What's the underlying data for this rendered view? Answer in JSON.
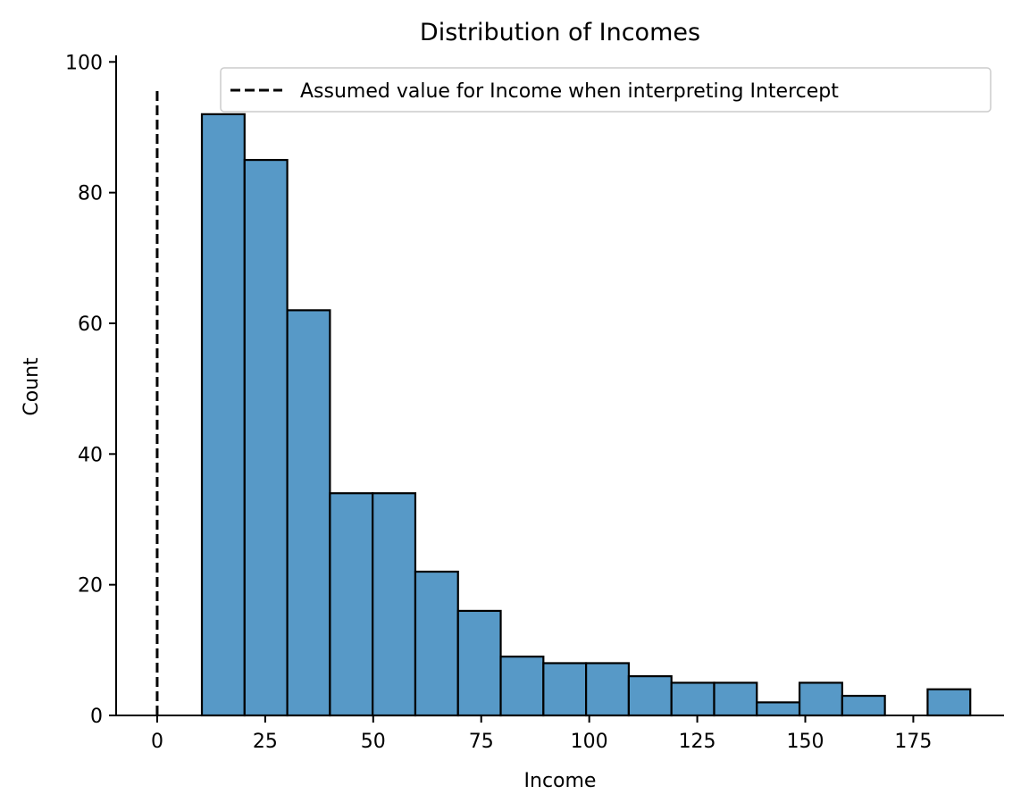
{
  "chart_data": {
    "type": "bar",
    "title": "Distribution of Incomes",
    "xlabel": "Income",
    "ylabel": "Count",
    "xlim": [
      -9.5,
      196
    ],
    "ylim": [
      0,
      101
    ],
    "xticks": [
      0,
      25,
      50,
      75,
      100,
      125,
      150,
      175
    ],
    "yticks": [
      0,
      20,
      40,
      60,
      80,
      100
    ],
    "grid": false,
    "bar_color": "#5799c7",
    "bar_edge_color": "#000000",
    "bins": [
      {
        "x0": 10.35,
        "x1": 20.23,
        "count": 92
      },
      {
        "x0": 20.23,
        "x1": 30.11,
        "count": 85
      },
      {
        "x0": 30.11,
        "x1": 39.99,
        "count": 62
      },
      {
        "x0": 39.99,
        "x1": 49.87,
        "count": 34
      },
      {
        "x0": 49.87,
        "x1": 59.75,
        "count": 34
      },
      {
        "x0": 59.75,
        "x1": 69.63,
        "count": 22
      },
      {
        "x0": 69.63,
        "x1": 79.51,
        "count": 16
      },
      {
        "x0": 79.51,
        "x1": 89.39,
        "count": 9
      },
      {
        "x0": 89.39,
        "x1": 99.27,
        "count": 8
      },
      {
        "x0": 99.27,
        "x1": 109.15,
        "count": 8
      },
      {
        "x0": 109.15,
        "x1": 119.03,
        "count": 6
      },
      {
        "x0": 119.03,
        "x1": 128.91,
        "count": 5
      },
      {
        "x0": 128.91,
        "x1": 138.79,
        "count": 5
      },
      {
        "x0": 138.79,
        "x1": 148.67,
        "count": 2
      },
      {
        "x0": 148.67,
        "x1": 158.55,
        "count": 5
      },
      {
        "x0": 158.55,
        "x1": 168.43,
        "count": 3
      },
      {
        "x0": 168.43,
        "x1": 178.31,
        "count": 0
      },
      {
        "x0": 178.31,
        "x1": 188.19,
        "count": 4
      }
    ],
    "reference_line": {
      "x": 0,
      "y_range": [
        0,
        96
      ],
      "style": "dashed",
      "color": "#000000",
      "label": "Assumed value for Income when interpreting Intercept"
    },
    "legend": {
      "placement": "top-right",
      "entries": [
        "Assumed value for Income when interpreting Intercept"
      ]
    }
  }
}
